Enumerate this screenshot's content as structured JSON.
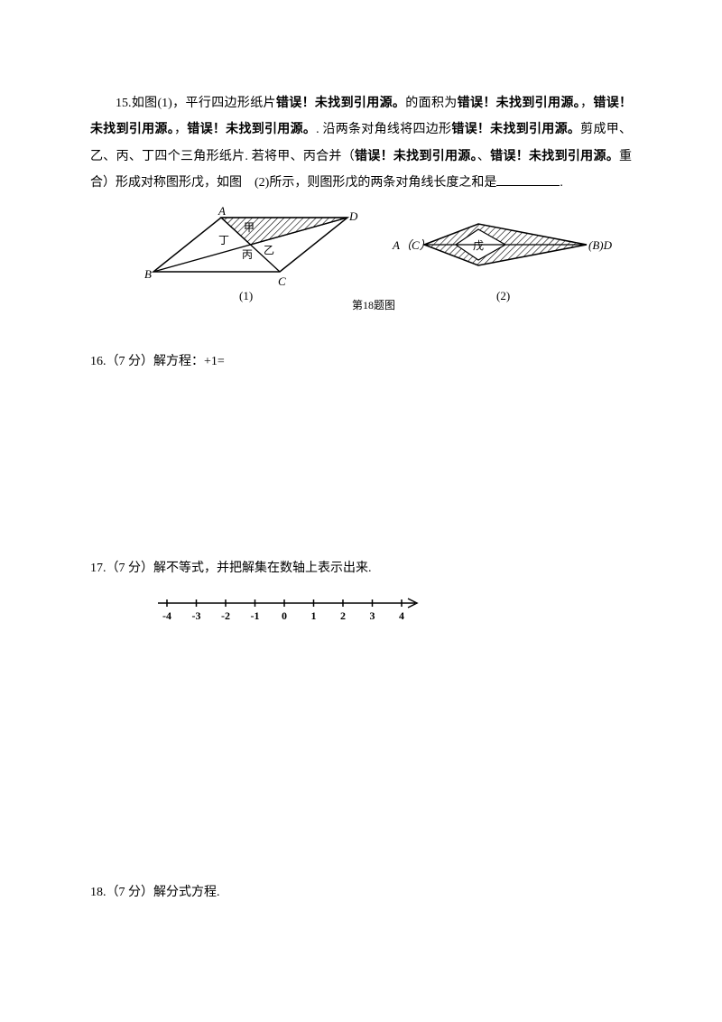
{
  "q15": {
    "text_part1": "15.如图(1)，平行四边形纸片",
    "err1": "错误！未找到引用源。",
    "text_part2": "的面积为",
    "err2": "错误！未找到引用源。",
    "text_part3": "，",
    "err3": "错误！未找到引用源。",
    "text_part4": "，",
    "err4": "错误！未找到引用源。",
    "text_part5": ". 沿两条对角线将四边形",
    "err5": "错误！未找到引用源。",
    "text_part6": "剪成甲、乙、丙、丁四个三角形纸片. 若将甲、丙合并（",
    "err6": "错误！未找到引用源。",
    "text_part7": "、",
    "err7": "错误！未找到引用源。",
    "text_part8": "重合）形成对称图形戊，如图　(2)所示，则图形戊的两条对角线长度之和是",
    "text_part9": "."
  },
  "figure": {
    "labels": {
      "A": "A",
      "B": "B",
      "C": "C",
      "D": "D",
      "AC": "A（C）",
      "BD": "(B)D",
      "jia": "甲",
      "yi": "乙",
      "bing": "丙",
      "ding": "丁",
      "wu": "戊",
      "sub1": "(1)",
      "sub2": "(2)",
      "caption": "第18题图"
    },
    "colors": {
      "stroke": "#000000",
      "fill_bg": "#ffffff"
    }
  },
  "q16": {
    "text": "16.（7 分）解方程：+1="
  },
  "q17": {
    "text": "17.（7 分）解不等式，并把解集在数轴上表示出来."
  },
  "q18": {
    "text": "18.（7 分）解分式方程."
  },
  "numberline": {
    "min": -4,
    "max": 4,
    "ticks": [
      -4,
      -3,
      -2,
      -1,
      0,
      1,
      2,
      3,
      4
    ]
  }
}
